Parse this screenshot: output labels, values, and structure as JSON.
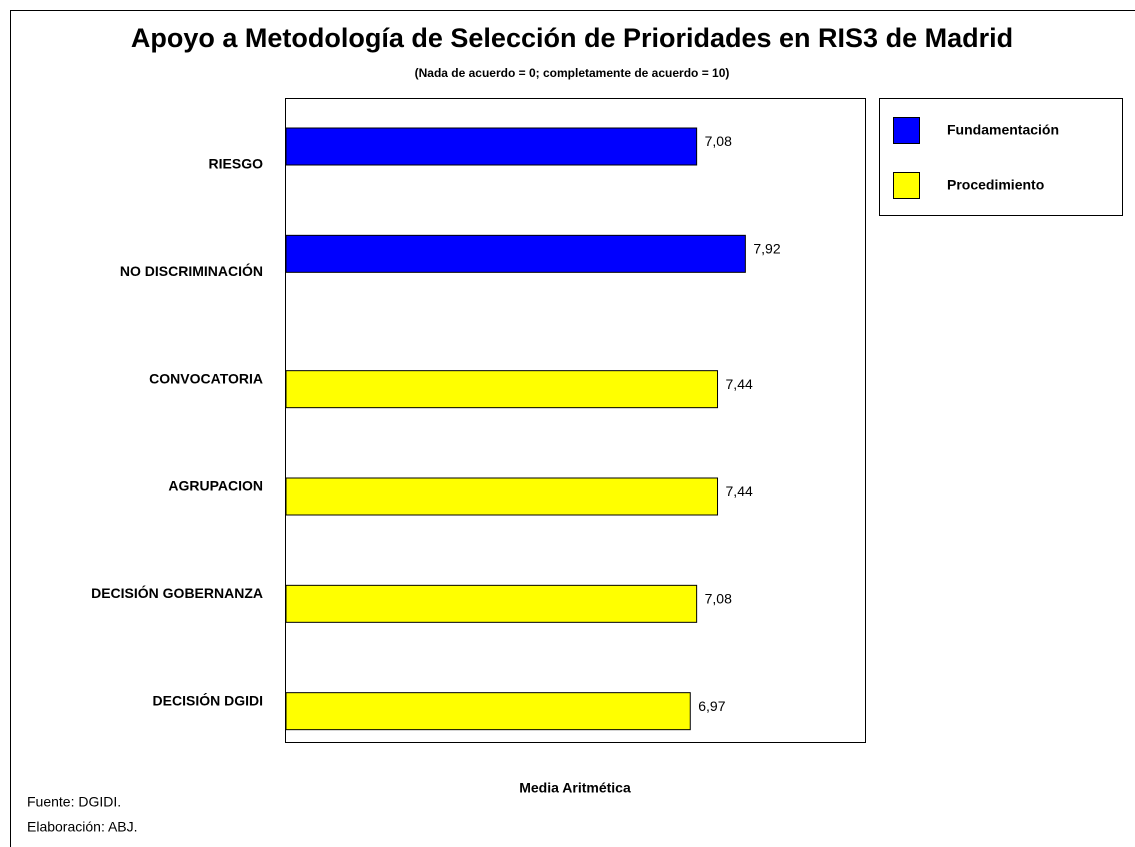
{
  "chart_data": {
    "type": "barh",
    "title": "Apoyo a Metodología de Selección de Prioridades en RIS3 de Madrid",
    "subtitle": "(Nada de acuerdo = 0; completamente de acuerdo = 10)",
    "x_label": "Media Aritmética",
    "notes": [
      "Fuente: DGIDI.",
      "Elaboración: ABJ."
    ],
    "categories": [
      "RIESGO",
      "NO DISCRIMINACIÓN",
      "CONVOCATORIA",
      "AGRUPACION",
      "DECISIÓN GOBERNANZA",
      "DECISIÓN DGIDI"
    ],
    "series": [
      {
        "name": "Fundamentación",
        "color": "#0000ff",
        "values": [
          7.08,
          7.92,
          null,
          null,
          null,
          null
        ],
        "value_labels": [
          "7,08",
          "7,92",
          null,
          null,
          null,
          null
        ]
      },
      {
        "name": "Procedimiento",
        "color": "#ffff00",
        "values": [
          null,
          null,
          7.44,
          7.44,
          7.08,
          6.97
        ],
        "value_labels": [
          null,
          null,
          "7,44",
          "7,44",
          "7,08",
          "6,97"
        ]
      }
    ],
    "xlim": [
      0,
      10
    ],
    "legend": "right"
  }
}
